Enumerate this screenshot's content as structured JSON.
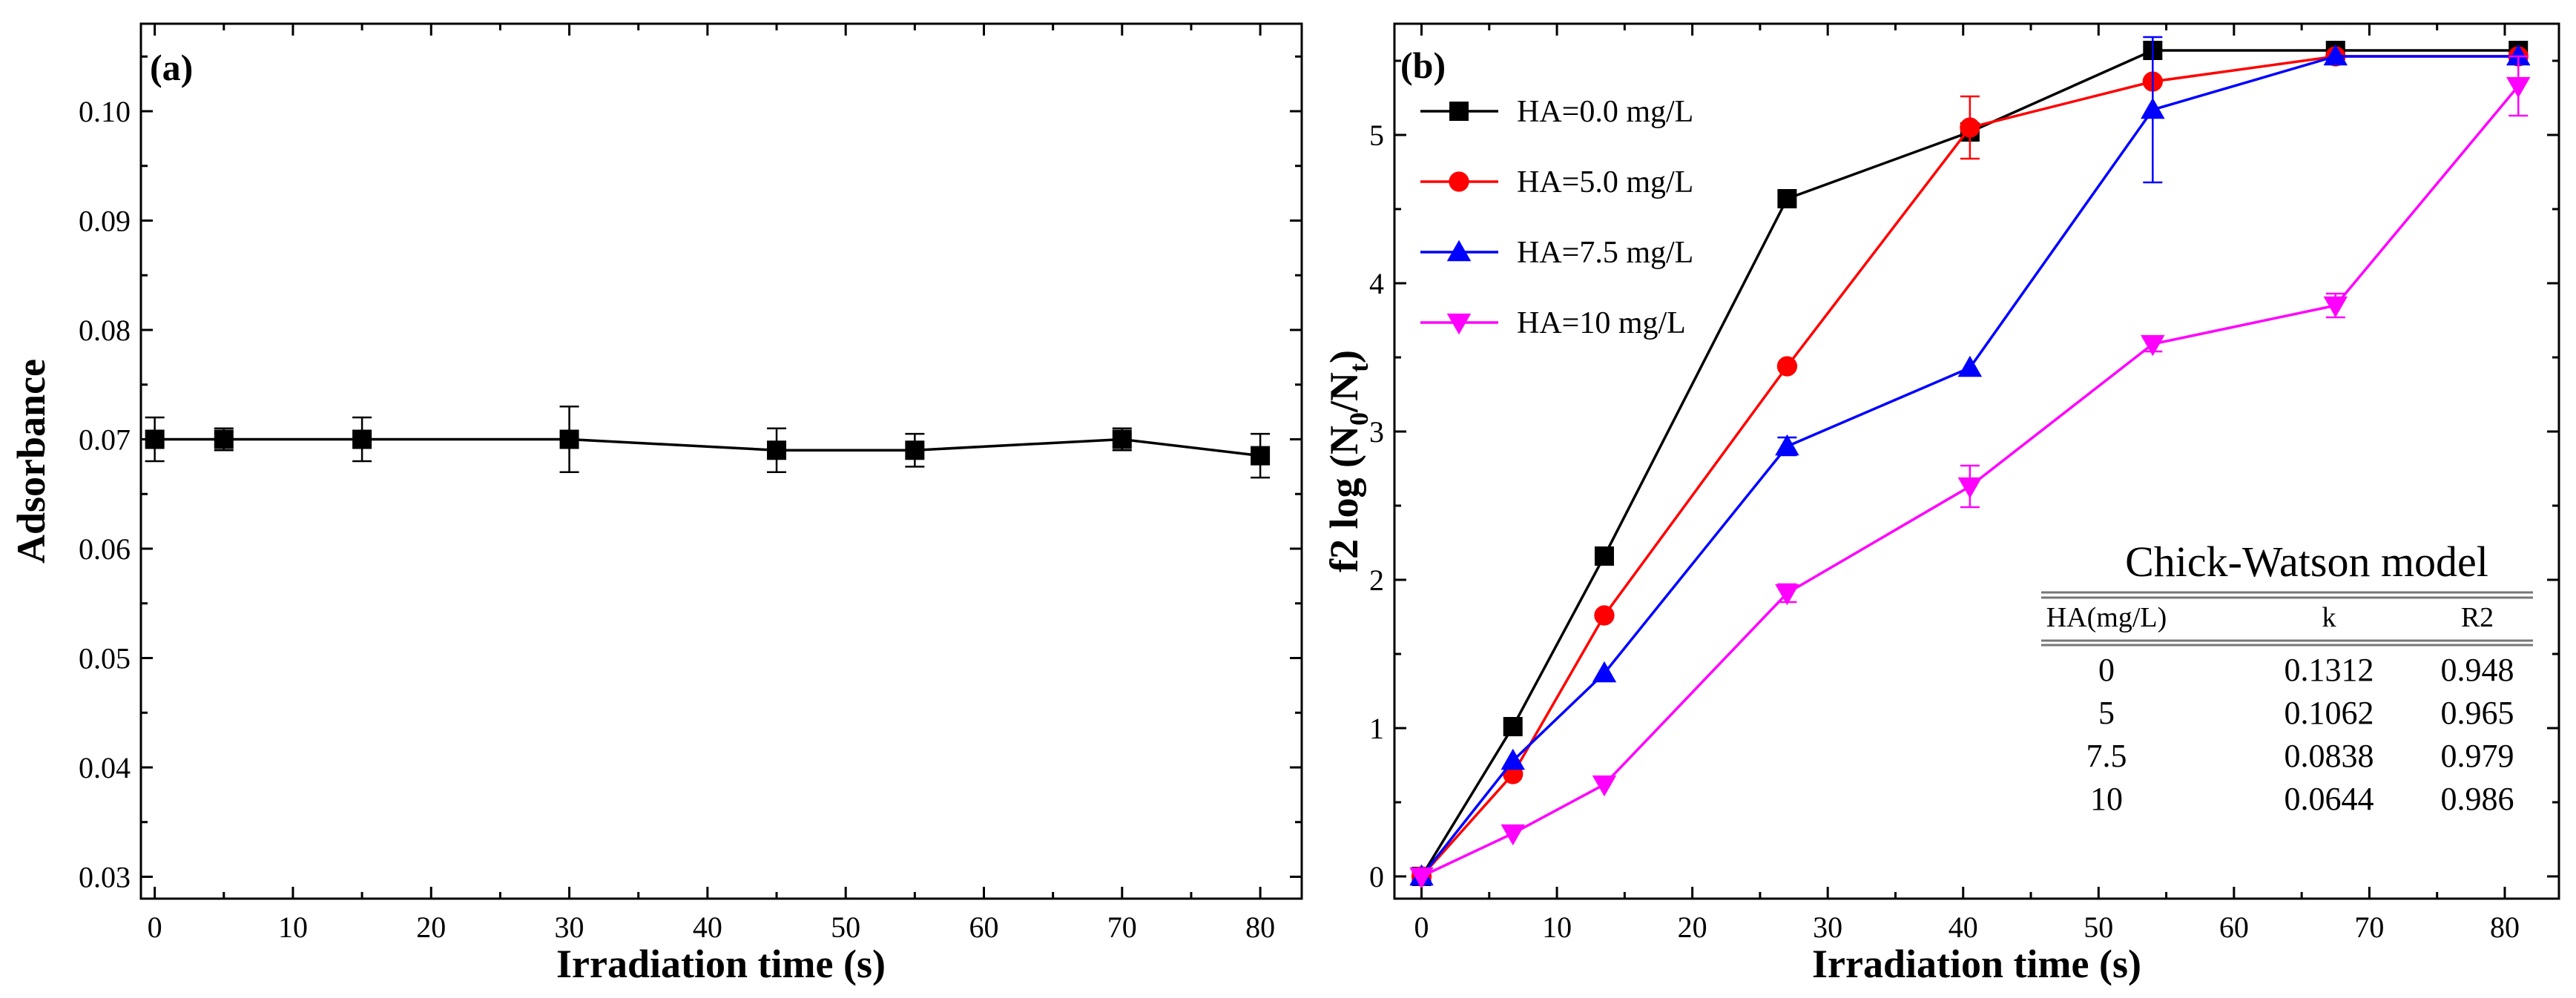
{
  "chart_data": [
    {
      "type": "line",
      "panel_label": "(a)",
      "title": "",
      "xlabel": "Irradiation time (s)",
      "ylabel": "Adsorbance",
      "xlim": [
        -1,
        83
      ],
      "ylim": [
        0.028,
        0.108
      ],
      "xticks": [
        0,
        10,
        20,
        30,
        40,
        50,
        60,
        70,
        80
      ],
      "xtick_labels": [
        "0",
        "10",
        "20",
        "30",
        "40",
        "50",
        "60",
        "70",
        "80"
      ],
      "yticks": [
        0.03,
        0.04,
        0.05,
        0.06,
        0.07,
        0.08,
        0.09,
        0.1
      ],
      "ytick_labels": [
        "0.03",
        "0.04",
        "0.05",
        "0.06",
        "0.07",
        "0.08",
        "0.09",
        "0.10"
      ],
      "grid": false,
      "series": [
        {
          "name": "Adsorbance",
          "color": "#000000",
          "marker": "square",
          "x": [
            0,
            5,
            15,
            30,
            45,
            55,
            70,
            80
          ],
          "y": [
            0.07,
            0.07,
            0.07,
            0.07,
            0.069,
            0.069,
            0.07,
            0.0685
          ],
          "err": [
            0.002,
            0.001,
            0.002,
            0.003,
            0.002,
            0.0015,
            0.001,
            0.002
          ]
        }
      ]
    },
    {
      "type": "line",
      "panel_label": "(b)",
      "title": "",
      "xlabel": "Irradiation time  (s)",
      "ylabel_main": "f2  log (N",
      "ylabel_sub1": "0",
      "ylabel_mid": "/N",
      "ylabel_sub2": "t",
      "ylabel_end": ")",
      "xlim": [
        -2,
        84
      ],
      "ylim": [
        -0.15,
        5.75
      ],
      "xticks": [
        0,
        10,
        20,
        30,
        40,
        50,
        60,
        70,
        80
      ],
      "xtick_labels": [
        "0",
        "10",
        "20",
        "30",
        "40",
        "50",
        "60",
        "70",
        "80"
      ],
      "yticks": [
        0,
        1,
        2,
        3,
        4,
        5
      ],
      "ytick_labels": [
        "0",
        "1",
        "2",
        "3",
        "4",
        "5"
      ],
      "grid": false,
      "legend_position": "top-left",
      "series": [
        {
          "name": "HA=0.0 mg/L",
          "color": "#000000",
          "marker": "square",
          "x": [
            0,
            6.75,
            13.5,
            27,
            40.5,
            54,
            67.5,
            81
          ],
          "y": [
            0,
            1.01,
            2.16,
            4.57,
            5.02,
            5.57,
            5.57,
            5.57
          ],
          "err": [
            0,
            0,
            0,
            0,
            0,
            0,
            0,
            0
          ]
        },
        {
          "name": "HA=5.0 mg/L",
          "color": "#ff0000",
          "marker": "circle",
          "x": [
            0,
            6.75,
            13.5,
            27,
            40.5,
            54,
            67.5,
            81
          ],
          "y": [
            0,
            0.69,
            1.76,
            3.44,
            5.05,
            5.36,
            5.53,
            5.53
          ],
          "err": [
            0,
            0,
            0,
            0,
            0.21,
            0,
            0,
            0
          ]
        },
        {
          "name": "HA=7.5 mg/L",
          "color": "#0000ff",
          "marker": "triangle-up",
          "x": [
            0,
            6.75,
            13.5,
            27,
            40.5,
            54,
            67.5,
            81
          ],
          "y": [
            0,
            0.78,
            1.37,
            2.9,
            3.43,
            5.17,
            5.53,
            5.53
          ],
          "err": [
            0,
            0,
            0,
            0.06,
            0,
            0.49,
            0,
            0
          ]
        },
        {
          "name": "HA=10  mg/L",
          "color": "#ff00ff",
          "marker": "triangle-down",
          "x": [
            0,
            6.75,
            13.5,
            27,
            40.5,
            54,
            67.5,
            81
          ],
          "y": [
            0,
            0.29,
            0.62,
            1.91,
            2.63,
            3.59,
            3.85,
            5.33
          ],
          "err": [
            0,
            0,
            0,
            0.06,
            0.14,
            0.05,
            0.08,
            0.2
          ]
        }
      ],
      "inset_table": {
        "title": "Chick-Watson model",
        "headers": [
          "HA(mg/L)",
          "k",
          "R2"
        ],
        "rows": [
          [
            "0",
            "0.1312",
            "0.948"
          ],
          [
            "5",
            "0.1062",
            "0.965"
          ],
          [
            "7.5",
            "0.0838",
            "0.979"
          ],
          [
            "10",
            "0.0644",
            "0.986"
          ]
        ]
      }
    }
  ]
}
